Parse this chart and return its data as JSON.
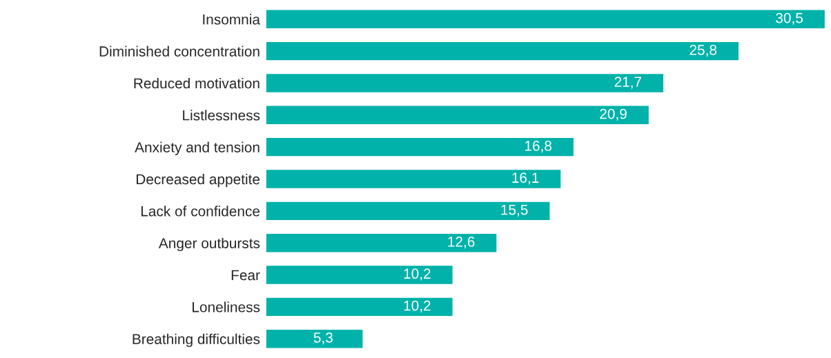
{
  "chart_data": {
    "type": "bar",
    "orientation": "horizontal",
    "categories": [
      "Insomnia",
      "Diminished concentration",
      "Reduced motivation",
      "Listlessness",
      "Anxiety and tension",
      "Decreased appetite",
      "Lack of confidence",
      "Anger outbursts",
      "Fear",
      "Loneliness",
      "Breathing difficulties"
    ],
    "values": [
      30.5,
      25.8,
      21.7,
      20.9,
      16.8,
      16.1,
      15.5,
      12.6,
      10.2,
      10.2,
      5.3
    ],
    "value_labels": [
      "30,5",
      "25,8",
      "21,7",
      "20,9",
      "16,8",
      "16,1",
      "15,5",
      "12,6",
      "10,2",
      "10,2",
      "5,3"
    ],
    "color": "#00b2a9",
    "grid": false,
    "legend": false
  }
}
